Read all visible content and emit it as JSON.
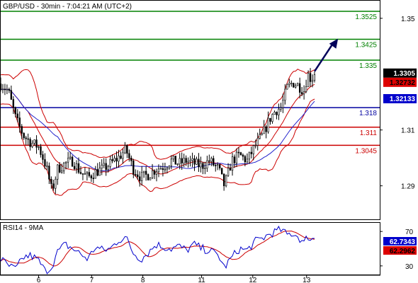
{
  "chart_data": [
    {
      "type": "candlestick",
      "title": "GBP/USD - 30min - 7:04:21 AM (UTC+2)",
      "ylim": [
        1.278,
        1.3563
      ],
      "y_ticks": [
        1.35,
        1.31,
        1.29
      ],
      "y_tick_labels": [
        "1.35",
        "1.31",
        "1.29"
      ],
      "x_tick_labels": [
        "6",
        "7",
        "8",
        "11",
        "12",
        "13"
      ],
      "x_tick_index": [
        0.1,
        0.24,
        0.375,
        0.53,
        0.665,
        0.807
      ],
      "levels": [
        {
          "label": "1.3525",
          "value": 1.3525,
          "color": "#008000"
        },
        {
          "label": "1.3425",
          "value": 1.3425,
          "color": "#008000"
        },
        {
          "label": "1.335",
          "value": 1.335,
          "color": "#008000"
        },
        {
          "label": "1.318",
          "value": 1.318,
          "color": "#0000a0"
        },
        {
          "label": "1.311",
          "value": 1.311,
          "color": "#cc0000"
        },
        {
          "label": "1.3045",
          "value": 1.3045,
          "color": "#cc0000"
        }
      ],
      "price_tags": [
        {
          "label": "1.3305",
          "value": 1.3305,
          "bg": "#000000",
          "fg": "#ffffff"
        },
        {
          "label": "1.32732",
          "value": 1.32732,
          "bg": "#dd0000",
          "fg": "#000000"
        },
        {
          "label": "1.32133",
          "value": 1.32133,
          "bg": "#0000cc",
          "fg": "#ffffff"
        }
      ],
      "forecast_arrow": {
        "from": [
          0.828,
          1.331
        ],
        "to": [
          0.89,
          1.3427
        ],
        "color": "#00005a"
      },
      "anchors": [
        [
          0.0,
          1.3265
        ],
        [
          0.02,
          1.324
        ],
        [
          0.04,
          1.314
        ],
        [
          0.06,
          1.308
        ],
        [
          0.08,
          1.3055
        ],
        [
          0.1,
          1.304
        ],
        [
          0.12,
          1.297
        ],
        [
          0.135,
          1.288
        ],
        [
          0.15,
          1.296
        ],
        [
          0.17,
          1.298
        ],
        [
          0.19,
          1.299
        ],
        [
          0.21,
          1.295
        ],
        [
          0.23,
          1.293
        ],
        [
          0.25,
          1.295
        ],
        [
          0.27,
          1.296
        ],
        [
          0.29,
          1.298
        ],
        [
          0.31,
          1.3
        ],
        [
          0.33,
          1.303
        ],
        [
          0.35,
          1.296
        ],
        [
          0.37,
          1.293
        ],
        [
          0.39,
          1.294
        ],
        [
          0.41,
          1.296
        ],
        [
          0.43,
          1.297
        ],
        [
          0.45,
          1.299
        ],
        [
          0.47,
          1.298
        ],
        [
          0.49,
          1.299
        ],
        [
          0.51,
          1.298
        ],
        [
          0.53,
          1.297
        ],
        [
          0.55,
          1.299
        ],
        [
          0.575,
          1.296
        ],
        [
          0.59,
          1.29
        ],
        [
          0.61,
          1.299
        ],
        [
          0.63,
          1.301
        ],
        [
          0.65,
          1.299
        ],
        [
          0.67,
          1.304
        ],
        [
          0.69,
          1.308
        ],
        [
          0.71,
          1.314
        ],
        [
          0.725,
          1.317
        ],
        [
          0.74,
          1.318
        ],
        [
          0.755,
          1.325
        ],
        [
          0.77,
          1.327
        ],
        [
          0.785,
          1.326
        ],
        [
          0.8,
          1.324
        ],
        [
          0.81,
          1.33
        ],
        [
          0.82,
          1.328
        ],
        [
          0.828,
          1.3305
        ]
      ],
      "indicator": {
        "title": "RSI14 - 9MA",
        "ylim": [
          20,
          80
        ],
        "y_ticks": [
          70,
          30
        ],
        "y_tick_labels": [
          "70",
          "30"
        ],
        "rsi_label": "62.7343",
        "ma_label": "62.2962",
        "rsi_color": "#0000cc",
        "ma_color": "#cc0000",
        "rsi_anchors": [
          [
            0.0,
            38
          ],
          [
            0.02,
            30
          ],
          [
            0.04,
            26
          ],
          [
            0.06,
            40
          ],
          [
            0.08,
            42
          ],
          [
            0.1,
            36
          ],
          [
            0.12,
            22
          ],
          [
            0.135,
            30
          ],
          [
            0.15,
            46
          ],
          [
            0.17,
            55
          ],
          [
            0.19,
            50
          ],
          [
            0.21,
            44
          ],
          [
            0.23,
            38
          ],
          [
            0.25,
            52
          ],
          [
            0.27,
            48
          ],
          [
            0.29,
            50
          ],
          [
            0.31,
            60
          ],
          [
            0.33,
            63
          ],
          [
            0.35,
            45
          ],
          [
            0.37,
            38
          ],
          [
            0.39,
            46
          ],
          [
            0.41,
            55
          ],
          [
            0.43,
            52
          ],
          [
            0.45,
            50
          ],
          [
            0.47,
            53
          ],
          [
            0.49,
            48
          ],
          [
            0.51,
            55
          ],
          [
            0.53,
            50
          ],
          [
            0.55,
            48
          ],
          [
            0.575,
            42
          ],
          [
            0.59,
            28
          ],
          [
            0.61,
            40
          ],
          [
            0.63,
            50
          ],
          [
            0.65,
            48
          ],
          [
            0.67,
            58
          ],
          [
            0.69,
            62
          ],
          [
            0.71,
            67
          ],
          [
            0.725,
            70
          ],
          [
            0.74,
            72
          ],
          [
            0.755,
            66
          ],
          [
            0.77,
            68
          ],
          [
            0.785,
            64
          ],
          [
            0.8,
            56
          ],
          [
            0.81,
            65
          ],
          [
            0.82,
            60
          ],
          [
            0.828,
            62.7
          ]
        ]
      }
    }
  ]
}
